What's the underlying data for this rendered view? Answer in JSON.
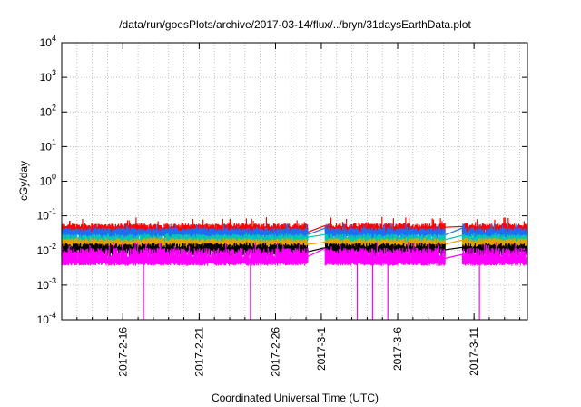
{
  "chart_data": {
    "type": "line",
    "title": "/data/run/goesPlots/archive/2017-03-14/flux/../bryn/31daysEarthData.plot",
    "xlabel": "Coordinated Universal Time (UTC)",
    "ylabel": "cGy/day",
    "yscale": "log",
    "ylim": [
      0.0001,
      10000
    ],
    "xlim": [
      "2017-02-12",
      "2017-03-14"
    ],
    "x_ticks": [
      "2017-2-16",
      "2017-2-21",
      "2017-2-26",
      "2017-3-1",
      "2017-3-6",
      "2017-3-11"
    ],
    "x_tick_dates": [
      "2017-02-16",
      "2017-02-21",
      "2017-02-26",
      "2017-03-01",
      "2017-03-06",
      "2017-03-11"
    ],
    "y_ticks": [
      {
        "value": 0.0001,
        "base": "10",
        "exp": "-4"
      },
      {
        "value": 0.001,
        "base": "10",
        "exp": "-3"
      },
      {
        "value": 0.01,
        "base": "10",
        "exp": "-2"
      },
      {
        "value": 0.1,
        "base": "10",
        "exp": "-1"
      },
      {
        "value": 1,
        "base": "10",
        "exp": "0"
      },
      {
        "value": 10,
        "base": "10",
        "exp": "1"
      },
      {
        "value": 100,
        "base": "10",
        "exp": "2"
      },
      {
        "value": 1000,
        "base": "10",
        "exp": "3"
      },
      {
        "value": 10000,
        "base": "10",
        "exp": "4"
      }
    ],
    "grid": true,
    "data_gaps": [
      [
        "2017-02-28",
        "2017-03-01"
      ],
      [
        "2017-03-09",
        "2017-03-10"
      ]
    ],
    "series": [
      {
        "color": "#ff0000",
        "typical": 0.045,
        "peak": 0.085
      },
      {
        "color": "#1e6ef5",
        "typical": 0.034,
        "peak": 0.055
      },
      {
        "color": "#00c8b4",
        "typical": 0.022,
        "peak": 0.03
      },
      {
        "color": "#e6a000",
        "typical": 0.017,
        "peak": 0.022
      },
      {
        "color": "#000000",
        "typical": 0.012,
        "peak": 0.016
      },
      {
        "color": "#ff00ff",
        "typical": 0.008,
        "peak": 0.016,
        "floor": 0.004,
        "dropouts": [
          "2017-02-17",
          "2017-02-24",
          "2017-03-03",
          "2017-03-04",
          "2017-03-05",
          "2017-03-11"
        ]
      }
    ]
  }
}
